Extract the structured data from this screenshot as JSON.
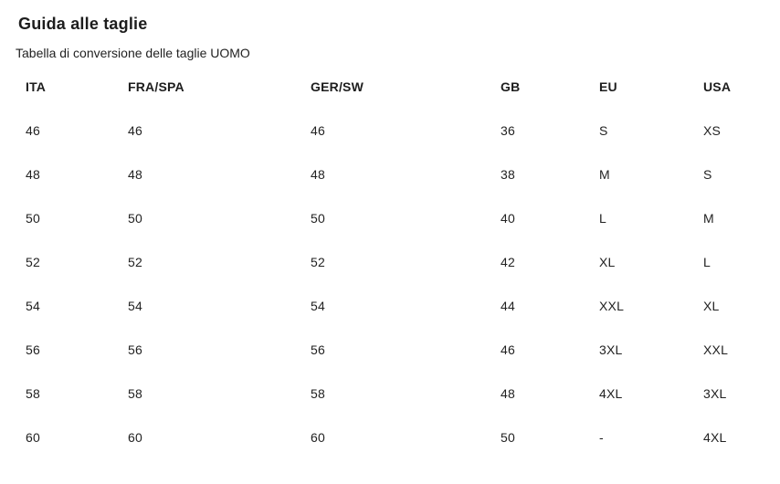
{
  "page": {
    "title": "Guida alle taglie",
    "subtitle": "Tabella di conversione delle taglie UOMO"
  },
  "table": {
    "columns": [
      "ITA",
      "FRA/SPA",
      "GER/SW",
      "GB",
      "EU",
      "USA"
    ],
    "rows": [
      [
        "46",
        "46",
        "46",
        "36",
        "S",
        "XS"
      ],
      [
        "48",
        "48",
        "48",
        "38",
        "M",
        "S"
      ],
      [
        "50",
        "50",
        "50",
        "40",
        "L",
        "M"
      ],
      [
        "52",
        "52",
        "52",
        "42",
        "XL",
        "L"
      ],
      [
        "54",
        "54",
        "54",
        "44",
        "XXL",
        "XL"
      ],
      [
        "56",
        "56",
        "56",
        "46",
        "3XL",
        "XXL"
      ],
      [
        "58",
        "58",
        "58",
        "48",
        "4XL",
        "3XL"
      ],
      [
        "60",
        "60",
        "60",
        "50",
        "-",
        "4XL"
      ]
    ]
  }
}
